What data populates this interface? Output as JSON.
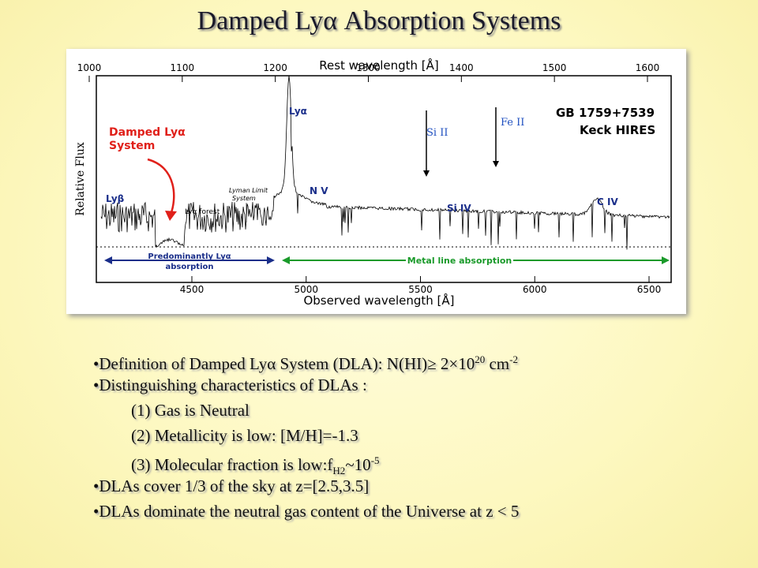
{
  "title": "Damped Lyα Absorption Systems",
  "figure": {
    "top_axis_label": "Rest wavelength [Å]",
    "top_ticks": [
      1000,
      1100,
      1200,
      1300,
      1400,
      1500,
      1600
    ],
    "bottom_axis_label": "Observed wavelength [Å]",
    "bottom_ticks": [
      4500,
      5000,
      5500,
      6000,
      6500
    ],
    "y_axis_label": "Relative Flux",
    "object": "GB 1759+7539",
    "instrument": "Keck HIRES",
    "dla_label": [
      "Damped Lyα",
      "System"
    ],
    "lines": {
      "lyb": "Lyβ",
      "lya_forest": "Lyα forest",
      "lls": [
        "Lyman Limit",
        "System"
      ],
      "lya": "Lyα",
      "nv": "N V",
      "siiv": "Si IV",
      "civ": "C IV",
      "siii": "Si II",
      "feii": "Fe II"
    },
    "lya_region": [
      "Predominantly Lyα",
      "absorption"
    ],
    "metal_region": "Metal line absorption"
  },
  "bullets": [
    {
      "level": 1,
      "segments": [
        {
          "text": "Definition of Damped Lyα System (DLA):  N(HI)≥ 2"
        },
        {
          "text": "×"
        },
        {
          "text": "10"
        },
        {
          "text": "20",
          "pos": "sup"
        },
        {
          "text": " cm"
        },
        {
          "text": "-2",
          "pos": "sup"
        }
      ]
    },
    {
      "level": 1,
      "segments": [
        {
          "text": "Distinguishing characteristics of DLAs :"
        }
      ]
    },
    {
      "level": 2,
      "segments": [
        {
          "text": "(1) Gas is Neutral"
        }
      ]
    },
    {
      "level": 2,
      "segments": [
        {
          "text": "(2) Metallicity is low: [M/H]=-1.3"
        }
      ]
    },
    {
      "level": 2,
      "segments": [
        {
          "text": "(3) Molecular fraction is low:f"
        },
        {
          "text": "H2",
          "pos": "sub"
        },
        {
          "text": "~10"
        },
        {
          "text": "-5",
          "pos": "sup"
        }
      ]
    },
    {
      "level": 1,
      "segments": [
        {
          "text": "DLAs cover 1/3 of the sky at z=[2.5,3.5]"
        }
      ]
    },
    {
      "level": 1,
      "segments": [
        {
          "text": "DLAs dominate the neutral gas content of the Universe at z < 5"
        }
      ]
    }
  ]
}
